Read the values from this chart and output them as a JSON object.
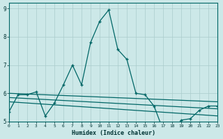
{
  "xlabel": "Humidex (Indice chaleur)",
  "bg_color": "#cce8e8",
  "grid_color": "#aacccc",
  "line_color": "#006666",
  "xlim": [
    0,
    23
  ],
  "ylim": [
    5.0,
    9.2
  ],
  "yticks": [
    5,
    6,
    7,
    8,
    9
  ],
  "ytick_labels": [
    "5",
    "6",
    "7",
    "8",
    "9"
  ],
  "xticks": [
    0,
    1,
    2,
    3,
    4,
    5,
    6,
    7,
    8,
    9,
    10,
    11,
    12,
    13,
    14,
    15,
    16,
    17,
    18,
    19,
    20,
    21,
    22,
    23
  ],
  "main_x": [
    0,
    1,
    2,
    3,
    4,
    5,
    6,
    7,
    8,
    9,
    10,
    11,
    12,
    13,
    14,
    15,
    16,
    17,
    18,
    19,
    20,
    21,
    22,
    23
  ],
  "main_y": [
    5.35,
    5.95,
    5.95,
    6.05,
    5.2,
    5.65,
    6.3,
    7.0,
    6.3,
    7.8,
    8.55,
    8.95,
    7.55,
    7.2,
    6.0,
    5.95,
    5.55,
    4.7,
    4.65,
    5.05,
    5.1,
    5.4,
    5.55,
    5.55
  ],
  "line2_x": [
    0,
    23
  ],
  "line2_y": [
    6.0,
    5.7
  ],
  "line3_x": [
    0,
    23
  ],
  "line3_y": [
    5.85,
    5.45
  ],
  "line4_x": [
    0,
    23
  ],
  "line4_y": [
    5.7,
    5.2
  ]
}
